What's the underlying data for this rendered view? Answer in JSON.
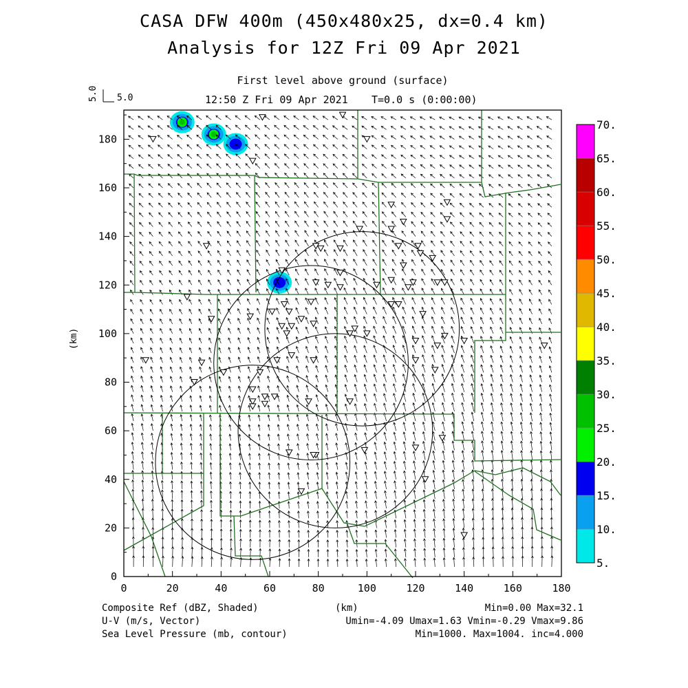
{
  "title_line1": "CASA DFW 400m (450x480x25, dx=0.4 km)",
  "title_line2": "Analysis for 12Z Fri 09 Apr 2021",
  "subtitle": "First level above ground (surface)",
  "time_label": "12:50 Z Fri 09 Apr 2021",
  "t_label": "T=0.0 s (0:00:00)",
  "ref_vector_label": "5.0",
  "footer": {
    "line1_left": "Composite Ref (dBZ, Shaded)",
    "line1_right": "Min=0.00 Max=32.1",
    "line2_left": "U-V (m/s, Vector)",
    "line2_right": "Umin=-4.09 Umax=1.63 Vmin=-0.29 Vmax=9.86",
    "line3_left": "Sea Level Pressure (mb, contour)",
    "line3_right": "Min=1000. Max=1004. inc=4.000"
  },
  "colors": {
    "boundary": "#1f6e1f",
    "colorbar": [
      "#00e8e8",
      "#0aa0f0",
      "#0000f0",
      "#00f000",
      "#00c000",
      "#008000",
      "#ffff00",
      "#e0b800",
      "#ff8c00",
      "#ff0000",
      "#d80000",
      "#b80000",
      "#ff00ff"
    ]
  },
  "chart_data": {
    "type": "heatmap",
    "xlabel": "(km)",
    "ylabel": "(km)",
    "xlim": [
      0,
      180
    ],
    "ylim": [
      0,
      192
    ],
    "x_ticks": [
      0,
      20,
      40,
      60,
      80,
      100,
      120,
      140,
      160,
      180
    ],
    "y_ticks": [
      0,
      20,
      40,
      60,
      80,
      100,
      120,
      140,
      160,
      180
    ],
    "colorbar": {
      "label": "Composite Ref (dBZ, Shaded)",
      "levels": [
        "5.",
        "10.",
        "15.",
        "20.",
        "25.",
        "30.",
        "35.",
        "40.",
        "45.",
        "50.",
        "55.",
        "60.",
        "65.",
        "70."
      ]
    },
    "reflectivity_cells": [
      {
        "x": 24,
        "y": 187,
        "max_dbz": 25
      },
      {
        "x": 37,
        "y": 182,
        "max_dbz": 25
      },
      {
        "x": 46,
        "y": 178,
        "max_dbz": 15
      },
      {
        "x": 64,
        "y": 121,
        "max_dbz": 15
      }
    ],
    "radar_range_rings": [
      {
        "center": [
          53,
          47
        ],
        "radius_km": 40
      },
      {
        "center": [
          77,
          88
        ],
        "radius_km": 40
      },
      {
        "center": [
          98,
          102
        ],
        "radius_km": 40
      },
      {
        "center": [
          87,
          60
        ],
        "radius_km": 40
      }
    ],
    "wind_field": {
      "umin": -4.09,
      "umax": 1.63,
      "vmin": -0.29,
      "vmax": 9.86,
      "ref_vector_ms": 5.0
    },
    "pressure": {
      "min": 1000,
      "max": 1004,
      "inc": 4.0
    },
    "stations": [
      [
        57,
        189
      ],
      [
        90,
        190
      ],
      [
        12,
        180
      ],
      [
        100,
        180
      ],
      [
        53,
        171
      ],
      [
        110,
        153
      ],
      [
        133,
        154
      ],
      [
        115,
        146
      ],
      [
        133,
        147
      ],
      [
        97,
        143
      ],
      [
        110,
        143
      ],
      [
        113,
        136
      ],
      [
        121,
        136
      ],
      [
        34,
        136
      ],
      [
        79,
        136
      ],
      [
        81,
        135
      ],
      [
        89,
        135
      ],
      [
        122,
        133
      ],
      [
        127,
        131
      ],
      [
        115,
        128
      ],
      [
        65,
        126
      ],
      [
        89,
        125
      ],
      [
        110,
        122
      ],
      [
        79,
        121
      ],
      [
        84,
        120
      ],
      [
        89,
        119
      ],
      [
        119,
        121
      ],
      [
        129,
        121
      ],
      [
        132,
        121
      ],
      [
        117,
        119
      ],
      [
        104,
        120
      ],
      [
        26,
        115
      ],
      [
        110,
        112
      ],
      [
        113,
        112
      ],
      [
        52,
        107
      ],
      [
        66,
        112
      ],
      [
        77,
        113
      ],
      [
        68,
        109
      ],
      [
        61,
        109
      ],
      [
        123,
        108
      ],
      [
        36,
        106
      ],
      [
        73,
        106
      ],
      [
        78,
        104
      ],
      [
        69,
        103
      ],
      [
        65,
        103
      ],
      [
        67,
        100
      ],
      [
        132,
        99
      ],
      [
        95,
        102
      ],
      [
        129,
        95
      ],
      [
        140,
        97
      ],
      [
        120,
        97
      ],
      [
        100,
        100
      ],
      [
        93,
        100
      ],
      [
        173,
        95
      ],
      [
        9,
        89
      ],
      [
        32,
        88
      ],
      [
        63,
        89
      ],
      [
        69,
        91
      ],
      [
        78,
        89
      ],
      [
        120,
        89
      ],
      [
        128,
        85
      ],
      [
        41,
        84
      ],
      [
        29,
        80
      ],
      [
        56,
        84
      ],
      [
        53,
        77
      ],
      [
        58,
        74
      ],
      [
        62,
        74
      ],
      [
        53,
        72
      ],
      [
        76,
        72
      ],
      [
        93,
        72
      ],
      [
        58,
        71
      ],
      [
        53,
        70
      ],
      [
        131,
        57
      ],
      [
        120,
        53
      ],
      [
        99,
        52
      ],
      [
        68,
        51
      ],
      [
        79,
        50
      ],
      [
        124,
        40
      ],
      [
        78,
        50
      ],
      [
        73,
        35
      ],
      [
        140,
        17
      ]
    ]
  }
}
